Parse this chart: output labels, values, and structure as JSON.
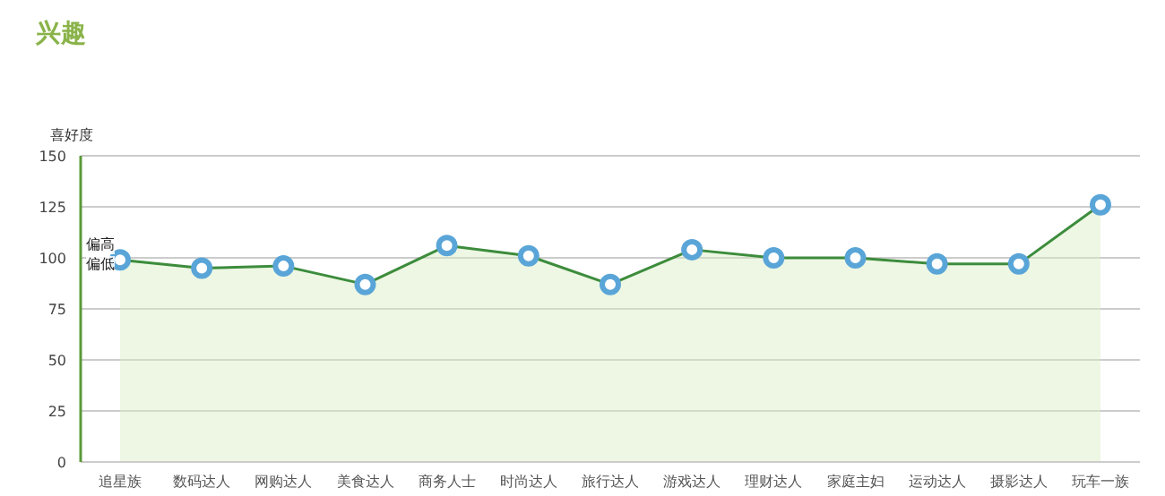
{
  "chart_data": {
    "type": "area",
    "title": "兴趣",
    "ylabel": "喜好度",
    "categories": [
      "追星族",
      "数码达人",
      "网购达人",
      "美食达人",
      "商务人士",
      "时尚达人",
      "旅行达人",
      "游戏达人",
      "理财达人",
      "家庭主妇",
      "运动达人",
      "摄影达人",
      "玩车一族"
    ],
    "series": [
      {
        "color": "#3c8c3c",
        "values": [
          99,
          95,
          96,
          87,
          106,
          101,
          87,
          104,
          100,
          100,
          97,
          97,
          126
        ]
      }
    ],
    "ylim": [
      0,
      150
    ],
    "yticks": [
      0,
      25,
      50,
      75,
      100,
      125,
      150
    ],
    "grid": "y",
    "marker": "circle",
    "line_style": "solid",
    "annotations": [
      "偏高",
      "偏低"
    ]
  }
}
